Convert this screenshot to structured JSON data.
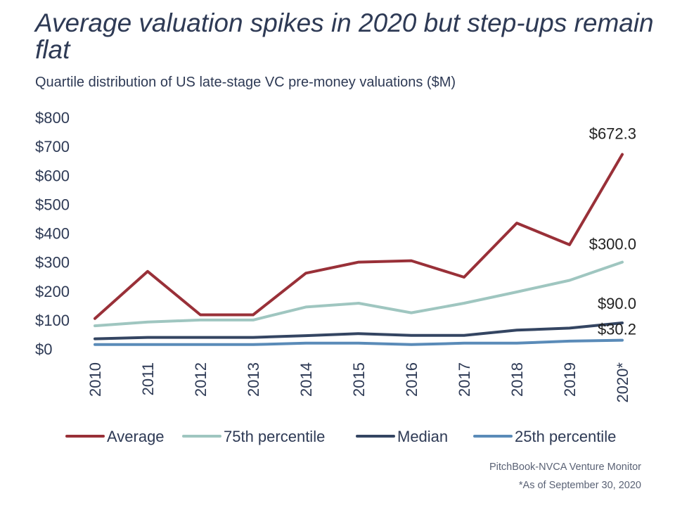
{
  "title": "Average valuation spikes in 2020 but step-ups remain flat",
  "subtitle": "Quartile distribution of US late-stage VC pre-money valuations ($M)",
  "source": "PitchBook-NVCA Venture Monitor",
  "note": "*As of September 30, 2020",
  "chart_data": {
    "type": "line",
    "title": "Average valuation spikes in 2020 but step-ups remain flat",
    "subtitle": "Quartile distribution of US late-stage VC pre-money valuations ($M)",
    "categories": [
      "2010",
      "2011",
      "2012",
      "2013",
      "2014",
      "2015",
      "2016",
      "2017",
      "2018",
      "2019",
      "2020*"
    ],
    "ylim": [
      0,
      800
    ],
    "yticks": [
      "$0",
      "$100",
      "$200",
      "$300",
      "$400",
      "$500",
      "$600",
      "$700",
      "$800"
    ],
    "grid": false,
    "legend_position": "bottom",
    "series": [
      {
        "name": "Average",
        "color": "#993038",
        "values": [
          105,
          268,
          118,
          118,
          262,
          300,
          305,
          248,
          435,
          360,
          672.3
        ],
        "end_label": "$672.3"
      },
      {
        "name": "75th percentile",
        "color": "#9fc6c0",
        "values": [
          80,
          93,
          100,
          100,
          145,
          158,
          125,
          158,
          197,
          237,
          300.0
        ],
        "end_label": "$300.0"
      },
      {
        "name": "Median",
        "color": "#344562",
        "values": [
          35,
          40,
          40,
          40,
          46,
          53,
          47,
          47,
          65,
          72,
          90.0
        ],
        "end_label": "$90.0"
      },
      {
        "name": "25th percentile",
        "color": "#5a8bb8",
        "values": [
          15,
          15,
          15,
          15,
          20,
          20,
          15,
          20,
          20,
          27,
          30.2
        ],
        "end_label": "$30.2"
      }
    ]
  }
}
